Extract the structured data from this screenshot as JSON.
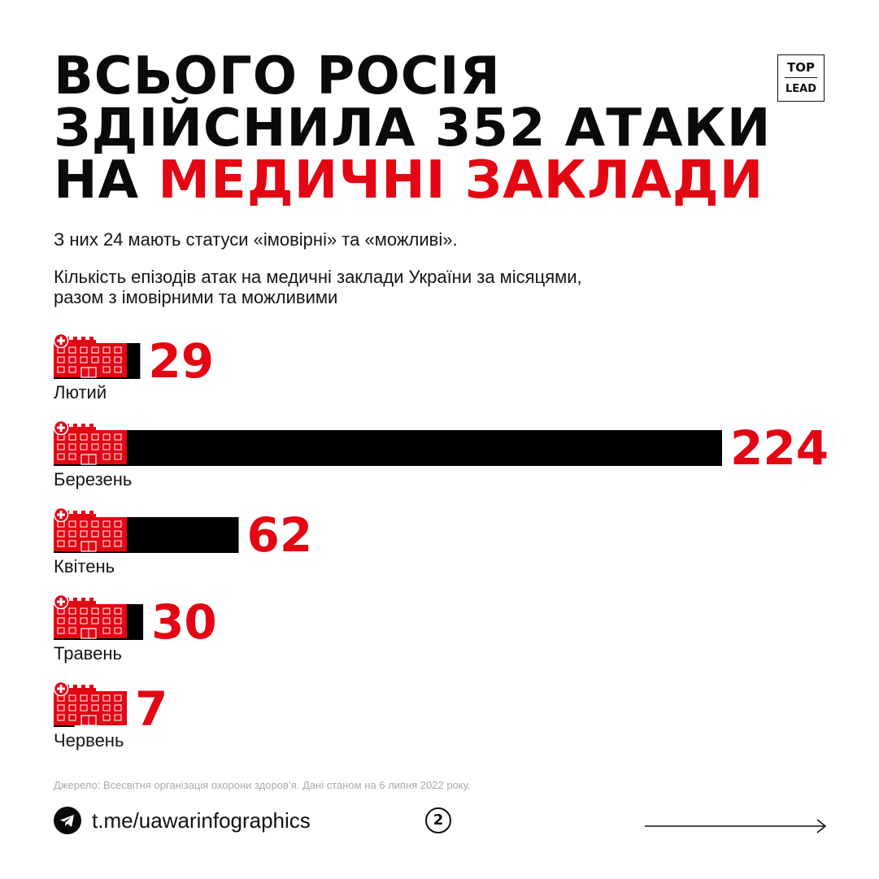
{
  "title": {
    "line1": "ВСЬОГО РОСІЯ",
    "line2": "ЗДІЙСНИЛА 352 АТАКИ",
    "line3_prefix": "НА ",
    "line3_accent": "МЕДИЧНІ ЗАКЛАДИ"
  },
  "logo": {
    "top": "TOP",
    "bottom": "LEAD"
  },
  "subtitle": "З них 24 мають статуси «імовірні» та «можливі».",
  "description": {
    "line1": "Кількість епізодів атак на медичні заклади України за місяцями,",
    "line2": "разом з імовірними та можливими"
  },
  "chart_data": {
    "type": "bar",
    "orientation": "horizontal",
    "categories": [
      "Лютий",
      "Березень",
      "Квітень",
      "Травень",
      "Червень"
    ],
    "values": [
      29,
      224,
      62,
      30,
      7
    ],
    "value_labels": [
      "29",
      "224",
      "62",
      "30",
      "7"
    ],
    "bar_color": "#000000",
    "label_color": "#e30613",
    "icon": "hospital-building-icon",
    "icon_color": "#e30613"
  },
  "source": "Джерело: Всесвітня організація охорони здоров’я. Дані станом на 6 липня 2022 року.",
  "footer": {
    "icon": "telegram-icon",
    "link": "t.me/uawarinfographics",
    "page_number": "2",
    "next_icon": "arrow-right-icon"
  },
  "colors": {
    "accent": "#e30613",
    "text": "#0a0a0a",
    "muted": "#a9a9a9",
    "background": "#ffffff"
  }
}
